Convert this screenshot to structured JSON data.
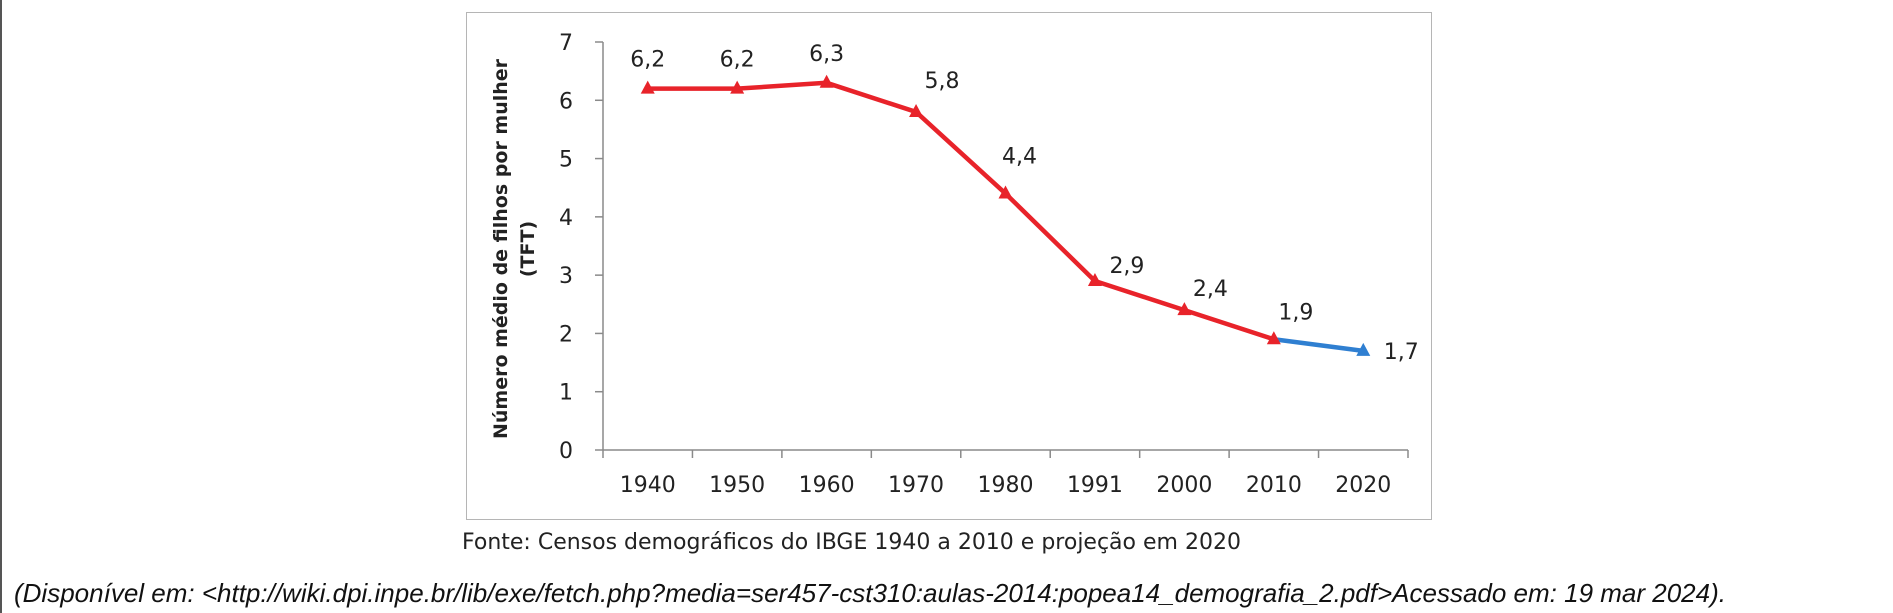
{
  "chart_data": {
    "type": "line",
    "categories": [
      "1940",
      "1950",
      "1960",
      "1970",
      "1980",
      "1991",
      "2000",
      "2010",
      "2020"
    ],
    "series": [
      {
        "values": [
          6.2,
          6.2,
          6.3,
          5.8,
          4.4,
          2.9,
          2.4,
          1.9,
          null
        ],
        "color": "#e8232a",
        "marker": "triangle"
      },
      {
        "values": [
          null,
          null,
          null,
          null,
          null,
          null,
          null,
          1.9,
          1.7
        ],
        "color": "#2f7fd1",
        "marker": "triangle"
      }
    ],
    "data_labels": [
      "6,2",
      "6,2",
      "6,3",
      "5,8",
      "4,4",
      "2,9",
      "2,4",
      "1,9",
      "1,7"
    ],
    "ylabel_line1": "Número médio de filhos por mulher",
    "ylabel_line2": "(TFT)",
    "xlabel": "",
    "ylim": [
      0,
      7
    ],
    "yticks": [
      "0",
      "1",
      "2",
      "3",
      "4",
      "5",
      "6",
      "7"
    ],
    "grid": false
  },
  "source_note": "Fonte: Censos demográficos do IBGE 1940 a 2010 e projeção em 2020",
  "citation": "(Disponível em: <http://wiki.dpi.inpe.br/lib/exe/fetch.php?media=ser457-cst310:aulas-2014:popea14_demografia_2.pdf>Acessado em: 19 mar 2024)."
}
